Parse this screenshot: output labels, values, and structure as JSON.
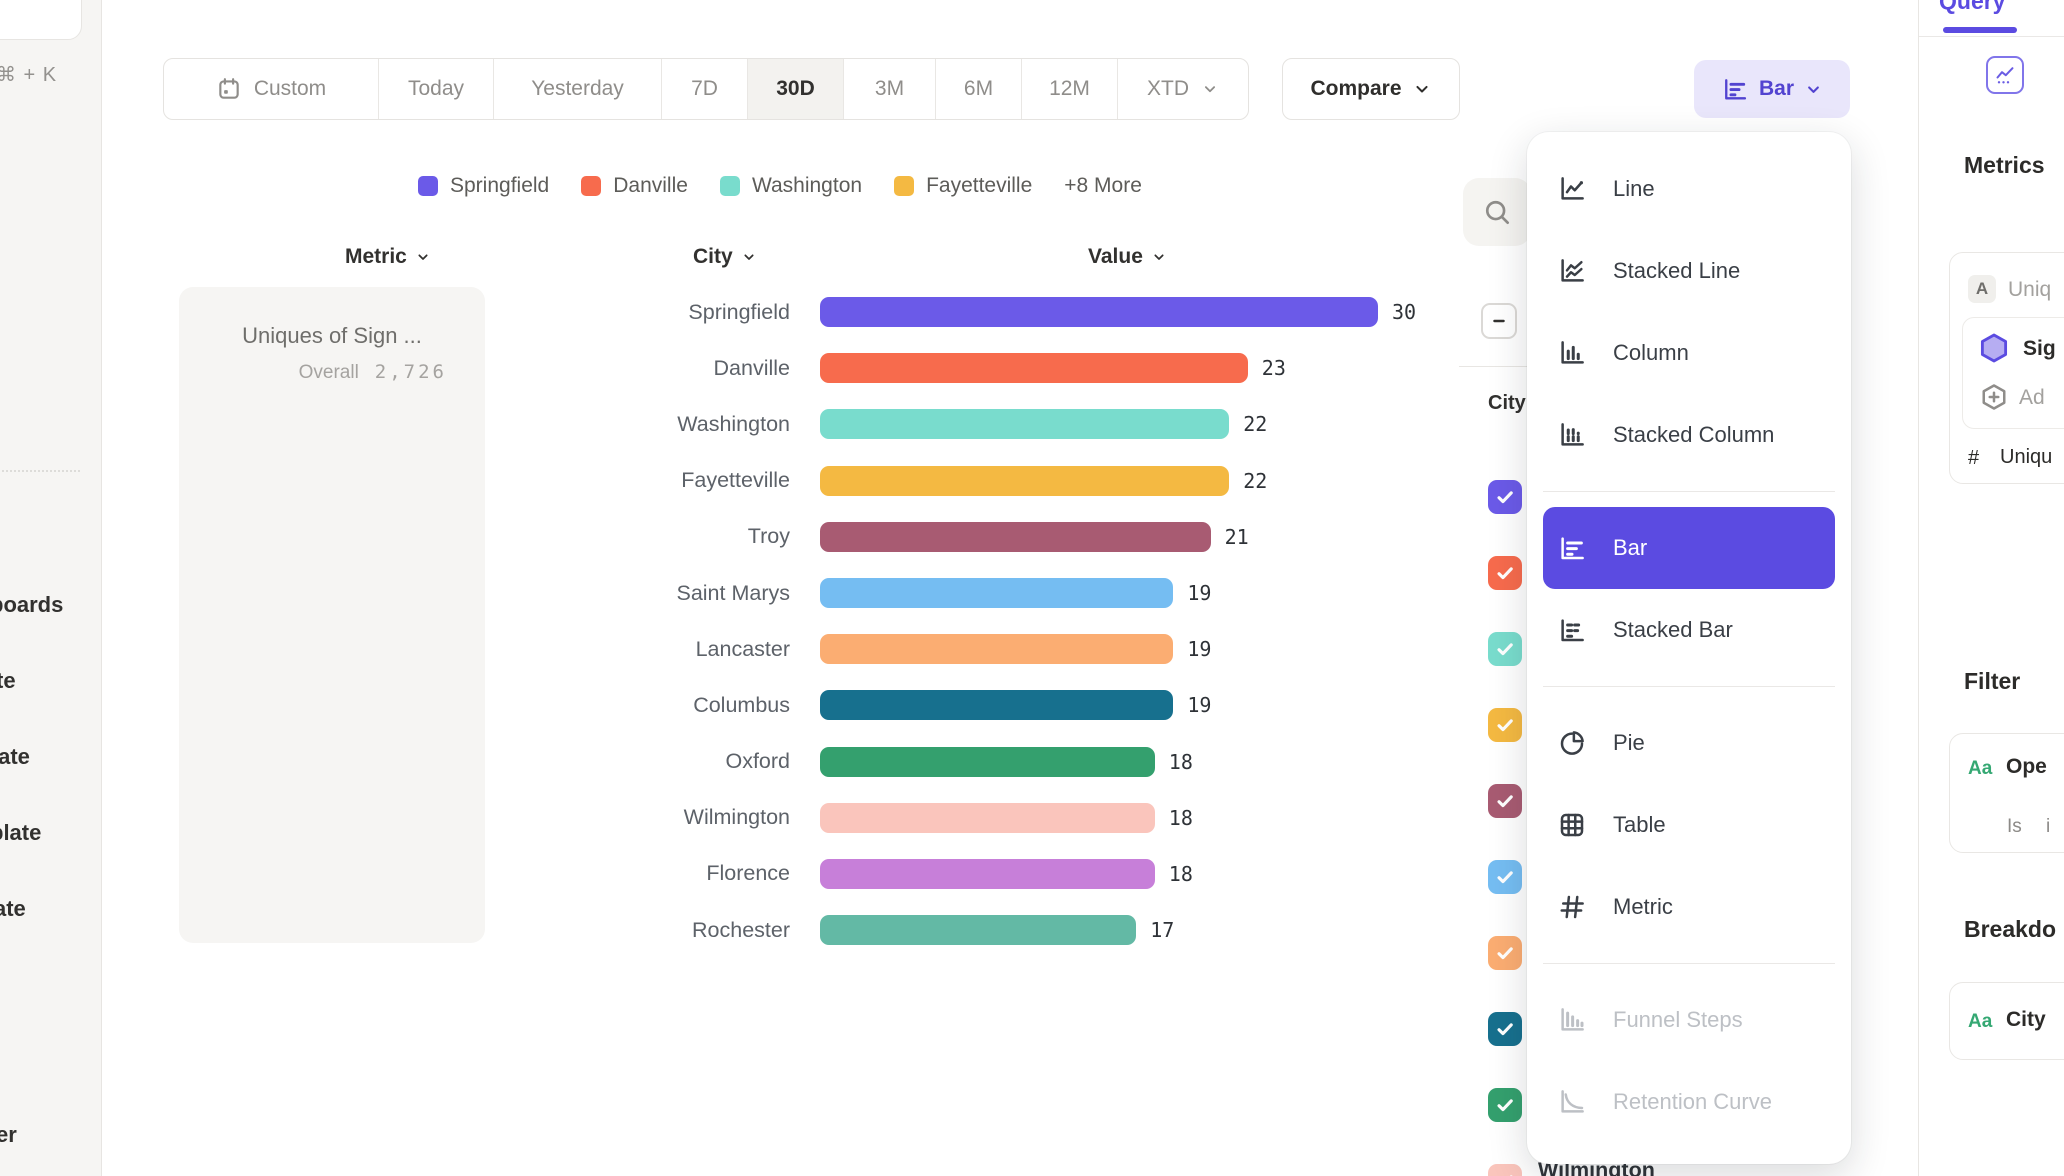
{
  "accent_color": "#5b4be1",
  "left_sidebar": {
    "shortcut": "⌘ + K",
    "items": [
      "boards",
      "te",
      "late",
      "plate",
      "ate"
    ],
    "bottom_item": "er"
  },
  "toolbar": {
    "ranges": [
      "Custom",
      "Today",
      "Yesterday",
      "7D",
      "30D",
      "3M",
      "6M",
      "12M",
      "XTD"
    ],
    "active_range": "30D",
    "compare": "Compare",
    "chart_type": "Bar"
  },
  "legend": {
    "items": [
      {
        "label": "Springfield",
        "color": "#6b5ae8"
      },
      {
        "label": "Danville",
        "color": "#f76b4d"
      },
      {
        "label": "Washington",
        "color": "#79dccd"
      },
      {
        "label": "Fayetteville",
        "color": "#f4b942"
      }
    ],
    "more": "+8 More"
  },
  "columns": {
    "metric": "Metric",
    "city": "City",
    "value": "Value"
  },
  "metric_panel": {
    "title": "Uniques of Sign ...",
    "overall_label": "Overall",
    "overall_value": "2,726"
  },
  "chart_data": {
    "type": "bar",
    "orientation": "horizontal",
    "categories": [
      "Springfield",
      "Danville",
      "Washington",
      "Fayetteville",
      "Troy",
      "Saint Marys",
      "Lancaster",
      "Columbus",
      "Oxford",
      "Wilmington",
      "Florence",
      "Rochester"
    ],
    "values": [
      30,
      23,
      22,
      22,
      21,
      19,
      19,
      19,
      18,
      18,
      18,
      17
    ],
    "colors": [
      "#6b5ae8",
      "#f76b4d",
      "#79dccd",
      "#f4b942",
      "#a85b72",
      "#75bdf2",
      "#fbad72",
      "#17708e",
      "#34a06e",
      "#fac5bc",
      "#c77fd9",
      "#63b9a5"
    ],
    "metric_label": "Uniques of Sign ...",
    "overall_value": 2726,
    "xlim": [
      0,
      30
    ],
    "value_labels_shown": true,
    "grid": false
  },
  "series_panel": {
    "column_label": "City",
    "select_all_state": "indeterminate",
    "checkbox_colors": [
      "#6b5ae8",
      "#f76b4d",
      "#79dccd",
      "#f4b942",
      "#a85b72",
      "#75bdf2",
      "#fbad72",
      "#17708e",
      "#34a06e",
      "#fac5bc"
    ],
    "partial_row_label": "Wilmington"
  },
  "chart_type_menu": {
    "items": [
      {
        "label": "Line",
        "icon": "line-chart-icon"
      },
      {
        "label": "Stacked Line",
        "icon": "stacked-line-chart-icon"
      },
      {
        "label": "Column",
        "icon": "column-chart-icon"
      },
      {
        "label": "Stacked Column",
        "icon": "stacked-column-chart-icon"
      },
      {
        "divider": true
      },
      {
        "label": "Bar",
        "icon": "bar-chart-icon",
        "selected": true
      },
      {
        "label": "Stacked Bar",
        "icon": "stacked-bar-chart-icon"
      },
      {
        "divider": true
      },
      {
        "label": "Pie",
        "icon": "pie-chart-icon"
      },
      {
        "label": "Table",
        "icon": "table-icon"
      },
      {
        "label": "Metric",
        "icon": "metric-icon"
      },
      {
        "divider": true
      },
      {
        "label": "Funnel Steps",
        "icon": "funnel-steps-icon",
        "disabled": true
      },
      {
        "label": "Retention Curve",
        "icon": "retention-curve-icon",
        "disabled": true
      }
    ]
  },
  "right_sidebar": {
    "tab": "Query",
    "metrics_heading": "Metrics",
    "metric_card": {
      "letter_badge": "A",
      "metric_name": "Uniq",
      "event_name": "Sig",
      "add_label": "Ad",
      "count_prefix": "#",
      "count_label": "Uniqu"
    },
    "filter_heading": "Filter",
    "filter_card": {
      "type_badge": "Aa",
      "property": "Ope",
      "operator": "Is",
      "operator_value": "i"
    },
    "breakdown_heading": "Breakdo",
    "breakdown_card": {
      "type_badge": "Aa",
      "property": "City"
    }
  }
}
